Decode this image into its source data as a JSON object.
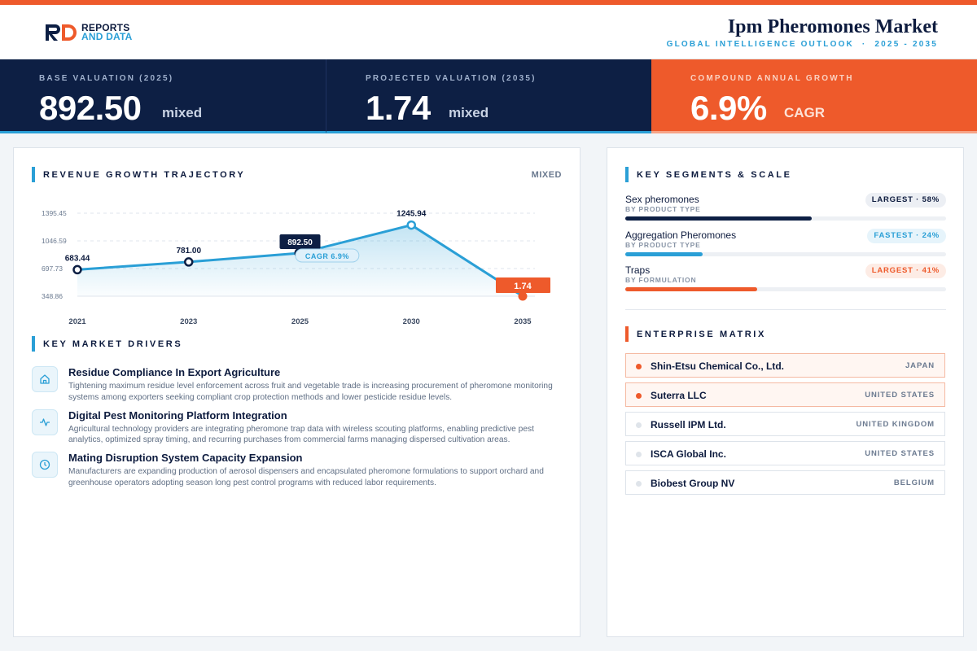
{
  "brand": {
    "line1": "REPORTS",
    "line2": "AND DATA"
  },
  "header": {
    "title": "Ipm Pheromones Market",
    "subtitle": "GLOBAL INTELLIGENCE OUTLOOK  ·  2025 - 2035"
  },
  "kpis": [
    {
      "label": "BASE VALUATION (2025)",
      "value": "892.50",
      "unit": "mixed"
    },
    {
      "label": "PROJECTED VALUATION (2035)",
      "value": "1.74",
      "unit": "mixed"
    },
    {
      "label": "COMPOUND ANNUAL GROWTH",
      "value": "6.9%",
      "unit": "CAGR"
    }
  ],
  "revenue": {
    "title": "REVENUE GROWTH TRAJECTORY",
    "tag": "MIXED",
    "cagr_label": "CAGR 6.9%"
  },
  "chart_data": {
    "type": "line",
    "title": "REVENUE GROWTH TRAJECTORY",
    "x": [
      "2021",
      "2023",
      "2025",
      "2030",
      "2035"
    ],
    "values": [
      683.44,
      781.0,
      892.5,
      1245.94,
      1.74
    ],
    "value_labels": [
      "683.44",
      "781.00",
      "892.50",
      "1245.94",
      "1.74"
    ],
    "yticks": [
      "1395.45",
      "1046.59",
      "697.73",
      "348.86"
    ],
    "ytick_values": [
      1395.45,
      1046.59,
      697.73,
      348.86
    ],
    "ylim": [
      348.86,
      1395.45
    ],
    "grid": true,
    "colors": {
      "line": "#2a9fd6",
      "highlight": "#0d1f44",
      "end": "#ee5a2b"
    }
  },
  "drivers": {
    "title": "KEY MARKET DRIVERS",
    "items": [
      {
        "icon": "home-icon",
        "title": "Residue Compliance In Export Agriculture",
        "desc": "Tightening maximum residue level enforcement across fruit and vegetable trade is increasing procurement of pheromone monitoring systems among exporters seeking compliant crop protection methods and lower pesticide residue levels."
      },
      {
        "icon": "activity-icon",
        "title": "Digital Pest Monitoring Platform Integration",
        "desc": "Agricultural technology providers are integrating pheromone trap data with wireless scouting platforms, enabling predictive pest analytics, optimized spray timing, and recurring purchases from commercial farms managing dispersed cultivation areas."
      },
      {
        "icon": "clock-icon",
        "title": "Mating Disruption System Capacity Expansion",
        "desc": "Manufacturers are expanding production of aerosol dispensers and encapsulated pheromone formulations to support orchard and greenhouse operators adopting season long pest control programs with reduced labor requirements."
      }
    ]
  },
  "segments": {
    "title": "KEY SEGMENTS & SCALE",
    "items": [
      {
        "name": "Sex pheromones",
        "category": "BY PRODUCT TYPE",
        "badge": "LARGEST · 58%",
        "share": 0.58,
        "color": "#0d1f44",
        "badge_bg": "#eceff4",
        "badge_color": "#0d1b3e"
      },
      {
        "name": "Aggregation Pheromones",
        "category": "BY PRODUCT TYPE",
        "badge": "FASTEST · 24%",
        "share": 0.24,
        "color": "#2a9fd6",
        "badge_bg": "#e6f4fb",
        "badge_color": "#2a9fd6"
      },
      {
        "name": "Traps",
        "category": "BY FORMULATION",
        "badge": "LARGEST · 41%",
        "share": 0.41,
        "color": "#ee5a2b",
        "badge_bg": "#fdece5",
        "badge_color": "#ee5a2b"
      }
    ]
  },
  "enterprise": {
    "title": "ENTERPRISE MATRIX",
    "items": [
      {
        "name": "Shin-Etsu Chemical Co., Ltd.",
        "country": "JAPAN",
        "highlight": true
      },
      {
        "name": "Suterra LLC",
        "country": "UNITED STATES",
        "highlight": true
      },
      {
        "name": "Russell IPM Ltd.",
        "country": "UNITED KINGDOM",
        "highlight": false
      },
      {
        "name": "ISCA Global Inc.",
        "country": "UNITED STATES",
        "highlight": false
      },
      {
        "name": "Biobest Group NV",
        "country": "BELGIUM",
        "highlight": false
      }
    ]
  }
}
